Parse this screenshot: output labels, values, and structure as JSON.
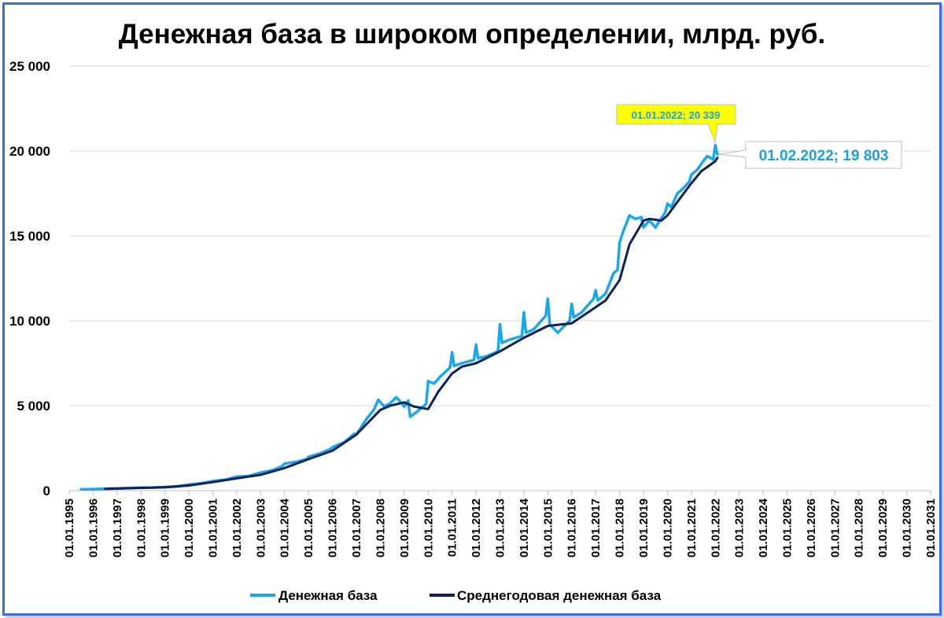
{
  "chart_data": {
    "type": "line",
    "title": "Денежная база в широком определении, млрд. руб.",
    "xlabel": "",
    "ylabel": "",
    "ylim": [
      0,
      25000
    ],
    "y_ticks": [
      "0",
      "5 000",
      "10 000",
      "15 000",
      "20 000",
      "25 000"
    ],
    "x_ticks": [
      "01.01.1995",
      "01.01.1996",
      "01.01.1997",
      "01.01.1998",
      "01.01.1999",
      "01.01.2000",
      "01.01.2001",
      "01.01.2002",
      "01.01.2003",
      "01.01.2004",
      "01.01.2005",
      "01.01.2006",
      "01.01.2007",
      "01.01.2008",
      "01.01.2009",
      "01.01.2010",
      "01.01.2011",
      "01.01.2012",
      "01.01.2013",
      "01.01.2014",
      "01.01.2015",
      "01.01.2016",
      "01.01.2017",
      "01.01.2018",
      "01.01.2019",
      "01.01.2020",
      "01.01.2021",
      "01.01.2022",
      "01.01.2023",
      "01.01.2024",
      "01.01.2025",
      "01.01.2026",
      "01.01.2027",
      "01.01.2028",
      "01.01.2029",
      "01.01.2030",
      "01.01.2031"
    ],
    "grid": "horizontal",
    "legend": "bottom",
    "series": [
      {
        "name": "Денежная база",
        "color": "#1ba8e8",
        "points": [
          [
            "1995-07-01",
            80
          ],
          [
            "1996-01-01",
            90
          ],
          [
            "1996-07-01",
            110
          ],
          [
            "1997-01-01",
            130
          ],
          [
            "1997-07-01",
            150
          ],
          [
            "1998-01-01",
            170
          ],
          [
            "1998-07-01",
            180
          ],
          [
            "1999-01-01",
            210
          ],
          [
            "1999-07-01",
            250
          ],
          [
            "2000-01-01",
            350
          ],
          [
            "2000-07-01",
            430
          ],
          [
            "2001-01-01",
            560
          ],
          [
            "2001-07-01",
            640
          ],
          [
            "2002-01-01",
            820
          ],
          [
            "2002-07-01",
            850
          ],
          [
            "2003-01-01",
            1060
          ],
          [
            "2003-07-01",
            1200
          ],
          [
            "2003-12-01",
            1450
          ],
          [
            "2004-01-01",
            1590
          ],
          [
            "2004-07-01",
            1700
          ],
          [
            "2004-12-01",
            1850
          ],
          [
            "2005-01-01",
            1990
          ],
          [
            "2005-07-01",
            2200
          ],
          [
            "2005-12-01",
            2450
          ],
          [
            "2006-01-01",
            2550
          ],
          [
            "2006-07-01",
            2850
          ],
          [
            "2006-12-01",
            3350
          ],
          [
            "2007-01-01",
            3300
          ],
          [
            "2007-06-01",
            4200
          ],
          [
            "2007-10-01",
            4800
          ],
          [
            "2007-12-01",
            5350
          ],
          [
            "2008-03-01",
            4950
          ],
          [
            "2008-06-01",
            5150
          ],
          [
            "2008-09-01",
            5500
          ],
          [
            "2008-12-01",
            5100
          ],
          [
            "2009-01-01",
            4950
          ],
          [
            "2009-03-01",
            5300
          ],
          [
            "2009-04-01",
            4350
          ],
          [
            "2009-07-01",
            4600
          ],
          [
            "2009-12-01",
            5100
          ],
          [
            "2010-01-01",
            6450
          ],
          [
            "2010-04-01",
            6300
          ],
          [
            "2010-07-01",
            6700
          ],
          [
            "2010-12-01",
            7250
          ],
          [
            "2011-01-01",
            8150
          ],
          [
            "2011-02-01",
            7350
          ],
          [
            "2011-06-01",
            7500
          ],
          [
            "2011-12-01",
            7700
          ],
          [
            "2012-01-01",
            8600
          ],
          [
            "2012-02-01",
            7800
          ],
          [
            "2012-06-01",
            7900
          ],
          [
            "2012-12-01",
            8200
          ],
          [
            "2013-01-01",
            9800
          ],
          [
            "2013-02-01",
            8700
          ],
          [
            "2013-06-01",
            8900
          ],
          [
            "2013-12-01",
            9100
          ],
          [
            "2014-01-01",
            10500
          ],
          [
            "2014-02-01",
            9300
          ],
          [
            "2014-06-01",
            9500
          ],
          [
            "2014-12-01",
            10300
          ],
          [
            "2015-01-01",
            11300
          ],
          [
            "2015-02-01",
            9800
          ],
          [
            "2015-06-01",
            9300
          ],
          [
            "2015-12-01",
            10000
          ],
          [
            "2016-01-01",
            11000
          ],
          [
            "2016-02-01",
            10200
          ],
          [
            "2016-06-01",
            10500
          ],
          [
            "2016-12-01",
            11300
          ],
          [
            "2017-01-01",
            11800
          ],
          [
            "2017-02-01",
            11200
          ],
          [
            "2017-06-01",
            11600
          ],
          [
            "2017-10-01",
            12800
          ],
          [
            "2017-12-01",
            13000
          ],
          [
            "2018-01-01",
            14600
          ],
          [
            "2018-03-01",
            15300
          ],
          [
            "2018-06-01",
            16200
          ],
          [
            "2018-09-01",
            16000
          ],
          [
            "2018-12-01",
            16100
          ],
          [
            "2019-01-01",
            15500
          ],
          [
            "2019-04-01",
            15900
          ],
          [
            "2019-07-01",
            15500
          ],
          [
            "2019-12-01",
            16400
          ],
          [
            "2020-01-01",
            16900
          ],
          [
            "2020-03-01",
            16700
          ],
          [
            "2020-06-01",
            17500
          ],
          [
            "2020-09-01",
            17800
          ],
          [
            "2020-12-01",
            18200
          ],
          [
            "2021-01-01",
            18600
          ],
          [
            "2021-04-01",
            18900
          ],
          [
            "2021-07-01",
            19400
          ],
          [
            "2021-09-01",
            19700
          ],
          [
            "2021-12-01",
            19500
          ],
          [
            "2022-01-01",
            20339
          ],
          [
            "2022-02-01",
            19803
          ]
        ]
      },
      {
        "name": "Среднегодовая денежная база",
        "color": "#0f1f5c",
        "points": [
          [
            "1996-07-01",
            100
          ],
          [
            "1997-01-01",
            120
          ],
          [
            "1998-01-01",
            160
          ],
          [
            "1999-01-01",
            200
          ],
          [
            "2000-01-01",
            300
          ],
          [
            "2001-01-01",
            500
          ],
          [
            "2002-01-01",
            720
          ],
          [
            "2003-01-01",
            930
          ],
          [
            "2004-01-01",
            1330
          ],
          [
            "2005-01-01",
            1850
          ],
          [
            "2006-01-01",
            2350
          ],
          [
            "2007-01-01",
            3300
          ],
          [
            "2007-06-01",
            3900
          ],
          [
            "2008-01-01",
            4750
          ],
          [
            "2008-06-01",
            5000
          ],
          [
            "2009-01-01",
            5200
          ],
          [
            "2009-06-01",
            4950
          ],
          [
            "2010-01-01",
            4800
          ],
          [
            "2010-06-01",
            5800
          ],
          [
            "2011-01-01",
            6900
          ],
          [
            "2011-06-01",
            7300
          ],
          [
            "2012-01-01",
            7500
          ],
          [
            "2013-01-01",
            8200
          ],
          [
            "2014-01-01",
            9000
          ],
          [
            "2015-01-01",
            9700
          ],
          [
            "2016-01-01",
            9850
          ],
          [
            "2017-01-01",
            10800
          ],
          [
            "2017-06-01",
            11200
          ],
          [
            "2018-01-01",
            12400
          ],
          [
            "2018-06-01",
            14500
          ],
          [
            "2019-01-01",
            15900
          ],
          [
            "2019-04-01",
            16000
          ],
          [
            "2019-10-01",
            15900
          ],
          [
            "2020-01-01",
            16200
          ],
          [
            "2020-06-01",
            17000
          ],
          [
            "2021-01-01",
            18100
          ],
          [
            "2021-06-01",
            18800
          ],
          [
            "2022-01-01",
            19400
          ],
          [
            "2022-02-01",
            19600
          ]
        ]
      }
    ],
    "annotations": [
      {
        "text": "01.01.2022;  20 339",
        "date": "2022-01-01",
        "value": 20339,
        "background": "#ffff00",
        "color": "#17a2e0"
      },
      {
        "text": "01.02.2022;  19 803",
        "date": "2022-02-01",
        "value": 19803,
        "background": "#ffffff",
        "color": "#17a2e0"
      }
    ]
  }
}
